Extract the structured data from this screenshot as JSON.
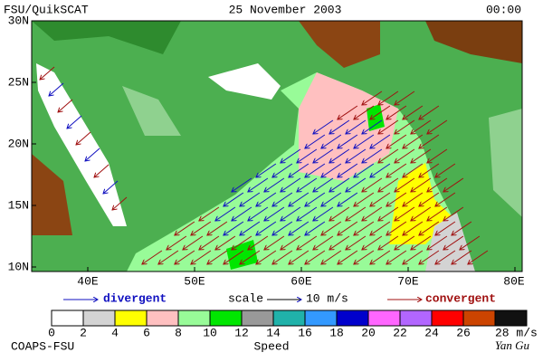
{
  "header": {
    "left": "FSU/QuikSCAT",
    "center": "25 November 2003",
    "right": "00:00"
  },
  "map": {
    "lat_labels": [
      "30N",
      "25N",
      "20N",
      "15N",
      "10N"
    ],
    "lon_labels": [
      "40E",
      "50E",
      "60E",
      "70E",
      "80E"
    ]
  },
  "legend": {
    "divergent": "divergent",
    "scale": "scale",
    "scale_value": "10 m/s",
    "convergent": "convergent"
  },
  "colorbar": {
    "labels": [
      "0",
      "2",
      "4",
      "6",
      "8",
      "10",
      "12",
      "14",
      "16",
      "18",
      "20",
      "22",
      "24",
      "26",
      "28 m/s"
    ],
    "colors": [
      "#ffffff",
      "#d3d3d3",
      "#ffff00",
      "#ffc0c0",
      "#98fb98",
      "#00e600",
      "#999999",
      "#20b2aa",
      "#3399ff",
      "#0000cc",
      "#ff66ff",
      "#b266ff",
      "#ff0000",
      "#cc4400",
      "#111111"
    ],
    "title": "Speed"
  },
  "footer": {
    "left": "COAPS-FSU",
    "right": "Yan Gu"
  }
}
